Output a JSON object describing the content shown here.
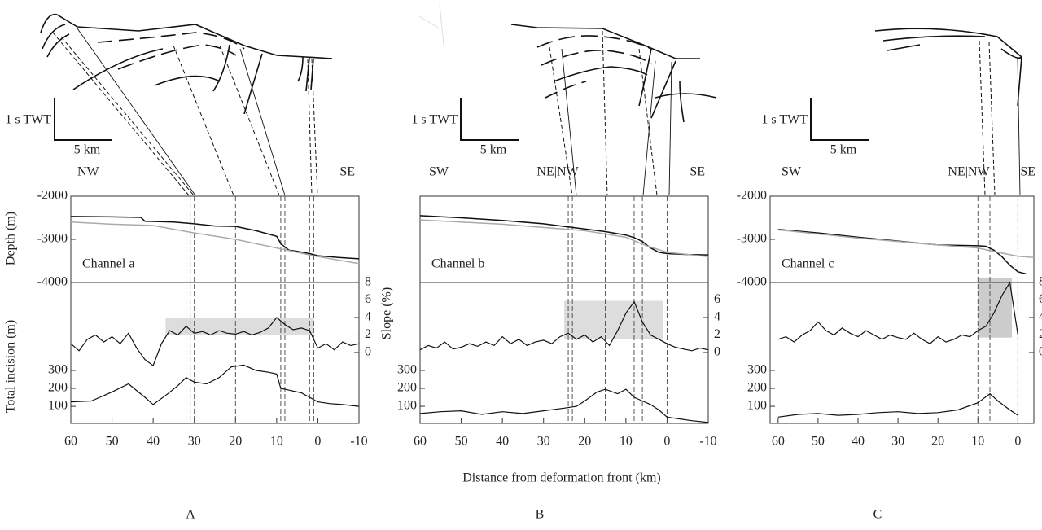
{
  "labels": {
    "x": "Distance from deformation front (km)",
    "depth": "Depth (m)",
    "incision": "Total incision (m)",
    "slope": "Slope (%)"
  },
  "chart_data": [
    {
      "type": "line",
      "label": "A",
      "channel": "Channel a",
      "scale_time": "1 s TWT",
      "scale_distance": "5 km",
      "directions": [
        "NW",
        "SE"
      ],
      "xlim": [
        60,
        -10
      ],
      "xticks": [
        60,
        50,
        40,
        30,
        20,
        10,
        0,
        -10
      ],
      "depth": {
        "ylim": [
          -4000,
          -2000
        ],
        "yticks": [
          -4000,
          -3000,
          -2000
        ],
        "series": [
          {
            "color": "#111111",
            "x": [
              60,
              50,
              43,
              42,
              35,
              30,
              25,
              20,
              15,
              10,
              9,
              7,
              5,
              2,
              0,
              -5,
              -10
            ],
            "values": [
              -2470,
              -2480,
              -2490,
              -2580,
              -2600,
              -2640,
              -2690,
              -2700,
              -2800,
              -2930,
              -3100,
              -3250,
              -3280,
              -3330,
              -3380,
              -3420,
              -3450
            ]
          },
          {
            "color": "#aaaaaa",
            "x": [
              60,
              50,
              40,
              30,
              20,
              10,
              0,
              -10
            ],
            "values": [
              -2600,
              -2650,
              -2680,
              -2850,
              -3000,
              -3200,
              -3400,
              -3560
            ]
          }
        ]
      },
      "slope": {
        "ylim": [
          -8.1,
          8
        ],
        "yticks": [
          0,
          2,
          4,
          6,
          8
        ],
        "color": "#111111",
        "x": [
          60,
          58,
          56,
          54,
          52,
          50,
          48,
          46,
          44,
          42,
          40,
          38,
          36,
          34,
          32,
          30,
          28,
          26,
          24,
          22,
          20,
          18,
          16,
          14,
          12,
          10,
          8,
          6,
          4,
          2,
          0,
          -2,
          -4,
          -6,
          -8,
          -10
        ],
        "values": [
          1.0,
          0.2,
          1.5,
          2.0,
          1.2,
          1.8,
          1.0,
          2.2,
          0.5,
          -0.8,
          -1.5,
          1.0,
          2.5,
          2.0,
          3.0,
          2.2,
          2.4,
          2.0,
          2.5,
          2.2,
          2.1,
          2.4,
          2.0,
          2.3,
          2.8,
          4.0,
          3.2,
          2.6,
          2.8,
          2.5,
          0.5,
          1.0,
          0.3,
          1.2,
          0.8,
          1.0
        ],
        "highlight": {
          "x": [
            37,
            1
          ],
          "y": [
            2,
            4
          ],
          "color": "#dddddd"
        }
      },
      "incision": {
        "ylim": [
          5,
          790
        ],
        "yticks": [
          100,
          200,
          300
        ],
        "color": "#111111",
        "x": [
          60,
          55,
          50,
          46,
          42,
          40,
          37,
          34,
          32,
          30,
          27,
          24,
          21,
          18,
          15,
          12,
          10,
          9,
          7,
          4,
          2,
          0,
          -3,
          -6,
          -10
        ],
        "values": [
          125,
          130,
          180,
          225,
          150,
          110,
          160,
          215,
          260,
          235,
          225,
          260,
          320,
          330,
          300,
          290,
          280,
          200,
          190,
          175,
          150,
          125,
          115,
          110,
          100
        ]
      },
      "fold_lines": [
        32,
        31,
        30,
        20,
        9,
        8,
        2,
        1
      ]
    },
    {
      "type": "line",
      "label": "B",
      "channel": "Channel b",
      "scale_time": "1 s TWT",
      "scale_distance": "5 km",
      "directions": [
        "SW",
        "NE|NW",
        "SE"
      ],
      "xlim": [
        60,
        -10
      ],
      "xticks": [
        60,
        50,
        40,
        30,
        20,
        10,
        0,
        -10
      ],
      "depth": {
        "ylim": [
          -4000,
          -2000
        ],
        "series": [
          {
            "color": "#111111",
            "x": [
              60,
              50,
              40,
              30,
              25,
              20,
              15,
              10,
              8,
              6,
              4,
              2,
              0,
              -5,
              -10
            ],
            "values": [
              -2450,
              -2500,
              -2560,
              -2640,
              -2700,
              -2760,
              -2820,
              -2900,
              -2960,
              -3050,
              -3200,
              -3300,
              -3330,
              -3350,
              -3360
            ]
          },
          {
            "color": "#aaaaaa",
            "x": [
              60,
              40,
              20,
              10,
              5,
              0,
              -10
            ],
            "values": [
              -2550,
              -2650,
              -2800,
              -2950,
              -3150,
              -3300,
              -3400
            ]
          }
        ]
      },
      "slope": {
        "ylim": [
          -8.1,
          8
        ],
        "yticks": [
          0,
          2,
          4,
          6
        ],
        "color": "#111111",
        "x": [
          60,
          58,
          56,
          54,
          52,
          50,
          48,
          46,
          44,
          42,
          40,
          38,
          36,
          34,
          32,
          30,
          28,
          26,
          24,
          22,
          20,
          18,
          16,
          14,
          12,
          10,
          8,
          6,
          4,
          2,
          0,
          -2,
          -4,
          -6,
          -8,
          -10
        ],
        "values": [
          0.3,
          0.8,
          0.5,
          1.2,
          0.4,
          0.6,
          1.0,
          0.7,
          1.2,
          0.8,
          1.8,
          1.0,
          1.5,
          0.8,
          1.2,
          1.4,
          1.0,
          1.8,
          2.2,
          1.5,
          2.0,
          1.2,
          1.8,
          0.8,
          2.5,
          4.5,
          5.8,
          3.5,
          2.0,
          1.5,
          1.0,
          0.6,
          0.4,
          0.2,
          0.5,
          0.3
        ],
        "highlight": {
          "x": [
            25,
            1
          ],
          "y": [
            1.5,
            5.9
          ],
          "color": "#dddddd"
        }
      },
      "incision": {
        "ylim": [
          5,
          790
        ],
        "yticks": [
          100,
          200,
          300
        ],
        "color": "#111111",
        "x": [
          60,
          55,
          50,
          45,
          40,
          35,
          30,
          25,
          22,
          20,
          17,
          15,
          12,
          10,
          8,
          6,
          4,
          2,
          0,
          -3,
          -6,
          -10
        ],
        "values": [
          60,
          70,
          75,
          55,
          70,
          60,
          75,
          90,
          100,
          130,
          180,
          195,
          170,
          195,
          150,
          130,
          110,
          80,
          40,
          30,
          20,
          10
        ]
      },
      "fold_lines": [
        24,
        23,
        15,
        8,
        6,
        0
      ]
    },
    {
      "type": "line",
      "label": "C",
      "channel": "Channel c",
      "scale_time": "1 s TWT",
      "scale_distance": "5 km",
      "directions": [
        "SW",
        "NE|NW",
        "SE"
      ],
      "xlim": [
        62,
        -4
      ],
      "xticks": [
        60,
        50,
        40,
        30,
        20,
        10,
        0
      ],
      "depth": {
        "ylim": [
          -4000,
          -2000
        ],
        "yticks": [
          -4000,
          -3000,
          -2000
        ],
        "series": [
          {
            "color": "#111111",
            "x": [
              60,
              50,
              40,
              30,
              20,
              10,
              8,
              6,
              4,
              2,
              0,
              -2
            ],
            "values": [
              -2770,
              -2850,
              -2950,
              -3040,
              -3130,
              -3150,
              -3160,
              -3250,
              -3400,
              -3600,
              -3750,
              -3800
            ]
          },
          {
            "color": "#aaaaaa",
            "x": [
              60,
              40,
              20,
              10,
              5,
              0,
              -4
            ],
            "values": [
              -2780,
              -2970,
              -3130,
              -3200,
              -3300,
              -3390,
              -3420
            ]
          }
        ]
      },
      "slope": {
        "ylim": [
          -8.1,
          8
        ],
        "yticks": [
          0,
          2,
          4,
          6,
          8
        ],
        "color": "#111111",
        "x": [
          60,
          58,
          56,
          54,
          52,
          50,
          48,
          46,
          44,
          42,
          40,
          38,
          36,
          34,
          32,
          30,
          28,
          26,
          24,
          22,
          20,
          18,
          16,
          14,
          12,
          10,
          8,
          6,
          4,
          2,
          0
        ],
        "values": [
          1.5,
          1.8,
          1.2,
          2.0,
          2.5,
          3.5,
          2.5,
          2.0,
          2.8,
          2.2,
          1.8,
          2.5,
          2.0,
          1.5,
          2.0,
          1.7,
          1.5,
          2.2,
          1.5,
          1.0,
          1.8,
          1.2,
          1.5,
          2.0,
          1.8,
          2.5,
          3.0,
          4.5,
          6.5,
          8.0,
          2.0
        ],
        "highlight": {
          "x": [
            10,
            1.5
          ],
          "y": [
            1.7,
            8.5
          ],
          "color": "#cccccc"
        }
      },
      "incision": {
        "ylim": [
          5,
          790
        ],
        "yticks": [
          100,
          200,
          300
        ],
        "color": "#111111",
        "x": [
          60,
          55,
          50,
          45,
          40,
          35,
          30,
          25,
          20,
          15,
          10,
          7,
          5,
          2,
          0
        ],
        "values": [
          40,
          55,
          60,
          50,
          55,
          65,
          70,
          60,
          65,
          80,
          120,
          170,
          130,
          80,
          50
        ]
      },
      "fold_lines": [
        10,
        7,
        0
      ]
    }
  ]
}
